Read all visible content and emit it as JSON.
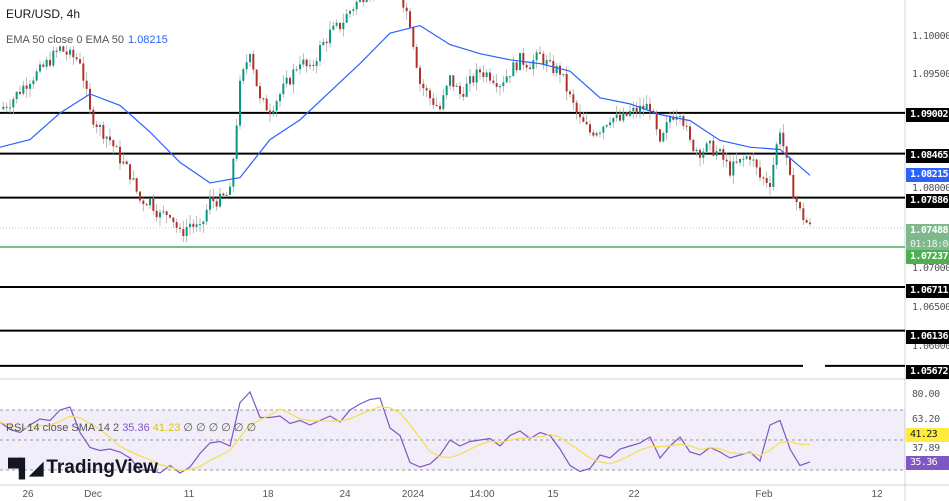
{
  "header": {
    "symbol": "EUR/USD, 4h"
  },
  "ema_legend": {
    "label": "EMA 50 close 0 EMA 50",
    "value": "1.08215"
  },
  "rsi_legend": {
    "label": "RSI 14 close SMA 14 2",
    "rsi": "35.36",
    "sma": "41.23",
    "extra": "∅ ∅ ∅ ∅ ∅ ∅"
  },
  "price_axis": {
    "ticks": [
      "1.10000",
      "1.09500",
      "1.08000",
      "1.07000",
      "1.06500",
      "1.06000"
    ],
    "levels": [
      {
        "label": "1.09002",
        "value": 1.09002
      },
      {
        "label": "1.08465",
        "value": 1.08465
      },
      {
        "label": "1.07886",
        "value": 1.07886
      },
      {
        "label": "1.06711",
        "value": 1.06711
      },
      {
        "label": "1.06136",
        "value": 1.06136
      },
      {
        "label": "1.05672",
        "value": 1.05672
      }
    ],
    "ema_tag": "1.08215",
    "last_price": "1.07488",
    "countdown": "01:18:04",
    "support": {
      "label": "1.07237",
      "value": 1.07237
    }
  },
  "rsi_axis": {
    "ticks": [
      "80.00",
      "63.20",
      "37.89"
    ],
    "sma_tag": "41.23",
    "rsi_tag": "35.36"
  },
  "time_axis": [
    "26",
    "Dec",
    "11",
    "18",
    "24",
    "2024",
    "14:00",
    "15",
    "22",
    "Feb",
    "12"
  ],
  "watermark": "TradingView",
  "colors": {
    "up": "#089981",
    "down": "#b2322b",
    "ema": "#2962ff",
    "rsi": "#7e57c2",
    "rsi_sma": "#f5e05a",
    "support": "#4caf50",
    "levels": "#000000"
  },
  "chart_data": {
    "type": "candlestick",
    "ylim": [
      1.0545,
      1.1085
    ],
    "close": [
      1.0905,
      1.0915,
      1.093,
      1.0945,
      1.0955,
      1.097,
      1.0985,
      1.0975,
      1.097,
      1.09,
      1.088,
      1.0865,
      1.084,
      1.082,
      1.0785,
      1.0785,
      1.0765,
      1.077,
      1.074,
      1.0755,
      1.0745,
      1.0785,
      1.0785,
      1.0795,
      1.0935,
      1.0985,
      1.0915,
      1.0905,
      1.0925,
      1.0945,
      1.097,
      1.0955,
      1.0985,
      1.1005,
      1.1015,
      1.1035,
      1.105,
      1.1065,
      1.1075,
      1.108,
      1.106,
      1.102,
      1.094,
      1.092,
      1.0905,
      1.0945,
      1.0925,
      1.094,
      1.0955,
      1.095,
      1.094,
      1.0955,
      1.097,
      1.0965,
      1.0975,
      1.096,
      1.0955,
      1.092,
      1.089,
      1.0875,
      1.088,
      1.0895,
      1.089,
      1.09,
      1.0905,
      1.091,
      1.0855,
      1.0895,
      1.0905,
      1.086,
      1.085,
      1.0855,
      1.0845,
      1.0825,
      1.0835,
      1.0845,
      1.0815,
      1.081,
      1.088,
      1.081,
      1.077,
      1.0749
    ],
    "ema50": [
      1.0855,
      1.0865,
      1.09,
      1.0925,
      1.091,
      1.0875,
      1.0835,
      1.0808,
      1.0815,
      1.0865,
      1.0891,
      1.0928,
      1.0965,
      1.1005,
      1.1015,
      1.099,
      1.0978,
      1.097,
      1.0965,
      1.0955,
      1.092,
      1.0912,
      1.0898,
      1.089,
      1.0864,
      1.0855,
      1.0852,
      1.0818
    ],
    "rsi": [
      62,
      57,
      55,
      60,
      64,
      63,
      70,
      72,
      55,
      45,
      43,
      44,
      42,
      38,
      30,
      30,
      28,
      33,
      28,
      32,
      41,
      48,
      49,
      46,
      75,
      82,
      65,
      65,
      66,
      61,
      63,
      60,
      63,
      66,
      62,
      70,
      74,
      77,
      78,
      58,
      53,
      35,
      32,
      34,
      40,
      50,
      46,
      49,
      50,
      51,
      46,
      53,
      56,
      51,
      55,
      53,
      44,
      33,
      29,
      31,
      40,
      38,
      44,
      46,
      48,
      52,
      38,
      46,
      52,
      42,
      40,
      45,
      42,
      38,
      40,
      42,
      36,
      60,
      63,
      44,
      33,
      35.36
    ],
    "rsi_ylim": [
      20,
      85
    ],
    "rsi_bands": [
      70,
      50,
      30
    ]
  }
}
